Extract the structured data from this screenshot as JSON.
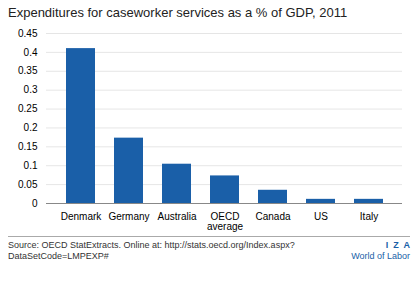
{
  "chart_data": {
    "type": "bar",
    "title": "Expenditures for caseworker services as a % of GDP, 2011",
    "categories": [
      "Denmark",
      "Germany",
      "Australia",
      "OECD\naverage",
      "Canada",
      "US",
      "Italy"
    ],
    "values": [
      0.41,
      0.173,
      0.104,
      0.073,
      0.035,
      0.011,
      0.011
    ],
    "color": "#1a5fa8",
    "ylim": [
      0,
      0.45
    ],
    "yticks": [
      0,
      0.05,
      0.1,
      0.15,
      0.2,
      0.25,
      0.3,
      0.35,
      0.4,
      0.45
    ],
    "grid": true,
    "annotations": [
      "Source: OECD StatExtracts. Online at: http://stats.oecd.org/Index.aspx?\nDataSetCode=LMPEXP#",
      "I  Z  A",
      "World of Labor"
    ]
  }
}
